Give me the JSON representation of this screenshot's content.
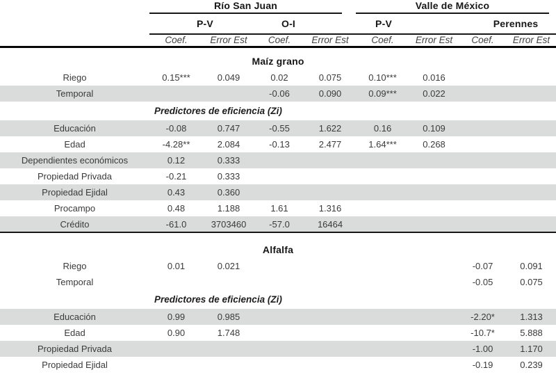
{
  "colors": {
    "row_shade": "#dadbdb",
    "rule_color": "#161616",
    "heading": "#161616",
    "text": "#3a3a3a"
  },
  "table": {
    "region_headers": [
      {
        "label": "Río San Juan"
      },
      {
        "label": "Valle de México"
      }
    ],
    "season_headers": [
      "P-V",
      "O-I",
      "P-V",
      "Perennes"
    ],
    "stat_headers": [
      "Coef.",
      "Error Est",
      "Coef.",
      "Error Est",
      "Coef.",
      "Error Est",
      "Coef.",
      "Error Est"
    ],
    "sections": [
      {
        "title": "Maíz grano",
        "rows": [
          {
            "label": "Riego",
            "shaded": false,
            "values": [
              "0.15***",
              "0.049",
              "0.02",
              "0.075",
              "0.10***",
              "0.016",
              "",
              ""
            ]
          },
          {
            "label": "Temporal",
            "shaded": true,
            "values": [
              "",
              "",
              "-0.06",
              "0.090",
              "0.09***",
              "0.022",
              "",
              ""
            ]
          },
          {
            "type": "subheader",
            "label": "Predictores de eficiencia (Zi)"
          },
          {
            "label": "Educación",
            "shaded": true,
            "values": [
              "-0.08",
              "0.747",
              "-0.55",
              "1.622",
              "0.16",
              "0.109",
              "",
              ""
            ]
          },
          {
            "label": "Edad",
            "shaded": false,
            "values": [
              "-4.28**",
              "2.084",
              "-0.13",
              "2.477",
              "1.64***",
              "0.268",
              "",
              ""
            ]
          },
          {
            "label": "Dependientes económicos",
            "shaded": true,
            "values": [
              "0.12",
              "0.333",
              "",
              "",
              "",
              "",
              "",
              ""
            ]
          },
          {
            "label": "Propiedad Privada",
            "shaded": false,
            "values": [
              "-0.21",
              "0.333",
              "",
              "",
              "",
              "",
              "",
              ""
            ]
          },
          {
            "label": "Propiedad Ejidal",
            "shaded": true,
            "values": [
              "0.43",
              "0.360",
              "",
              "",
              "",
              "",
              "",
              ""
            ]
          },
          {
            "label": "Procampo",
            "shaded": false,
            "values": [
              "0.48",
              "1.188",
              "1.61",
              "1.316",
              "",
              "",
              "",
              ""
            ]
          },
          {
            "label": "Crédito",
            "shaded": true,
            "rule_below": true,
            "values": [
              "-61.0",
              "3703460",
              "-57.0",
              "16464",
              "",
              "",
              "",
              ""
            ]
          }
        ]
      },
      {
        "title": "Alfalfa",
        "rows": [
          {
            "label": "Riego",
            "shaded": false,
            "values": [
              "0.01",
              "0.021",
              "",
              "",
              "",
              "",
              "-0.07",
              "0.091"
            ]
          },
          {
            "label": "Temporal",
            "shaded": false,
            "values": [
              "",
              "",
              "",
              "",
              "",
              "",
              "-0.05",
              "0.075"
            ]
          },
          {
            "type": "subheader",
            "label": "Predictores de eficiencia (Zi)"
          },
          {
            "label": "Educación",
            "shaded": true,
            "values": [
              "0.99",
              "0.985",
              "",
              "",
              "",
              "",
              "-2.20*",
              "1.313"
            ]
          },
          {
            "label": "Edad",
            "shaded": false,
            "values": [
              "0.90",
              "1.748",
              "",
              "",
              "",
              "",
              "-10.7*",
              "5.888"
            ]
          },
          {
            "label": "Propiedad Privada",
            "shaded": true,
            "values": [
              "",
              "",
              "",
              "",
              "",
              "",
              "-1.00",
              "1.170"
            ]
          },
          {
            "label": "Propiedad Ejidal",
            "shaded": false,
            "values": [
              "",
              "",
              "",
              "",
              "",
              "",
              "-0.19",
              "0.239"
            ]
          }
        ]
      }
    ]
  }
}
